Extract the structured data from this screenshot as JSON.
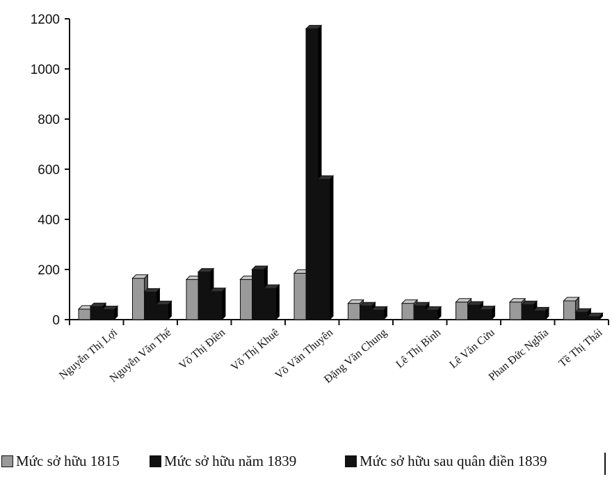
{
  "chart_data": {
    "type": "bar",
    "categories": [
      "Nguyễn Thị Lợi",
      "Nguyễn Văn Thế",
      "Võ Thị Điền",
      "Võ Thị Khuê",
      "Võ Văn Thuyên",
      "Đặng Văn Chung",
      "Lê Thị Bình",
      "Lê Văn Cửu",
      "Phan Đức Nghĩa",
      "Tề Thị Thái"
    ],
    "series": [
      {
        "name": "Mức sở hữu 1815",
        "values": [
          42,
          165,
          160,
          160,
          185,
          65,
          65,
          70,
          70,
          75
        ],
        "color": "#9a9a9a"
      },
      {
        "name": "Mức sở hữu năm 1839",
        "values": [
          52,
          110,
          190,
          200,
          1160,
          55,
          55,
          58,
          60,
          30
        ],
        "color": "#111111"
      },
      {
        "name": "Mức sở hữu sau quân điền 1839",
        "values": [
          40,
          60,
          112,
          125,
          560,
          38,
          38,
          40,
          35,
          12
        ],
        "color": "#111111"
      }
    ],
    "y_ticks": [
      "0",
      "200",
      "400",
      "600",
      "800",
      "1000",
      "1200"
    ],
    "ylim": [
      0,
      1200
    ],
    "grid": false,
    "legend_position": "bottom",
    "title": "",
    "xlabel": "",
    "ylabel": ""
  }
}
